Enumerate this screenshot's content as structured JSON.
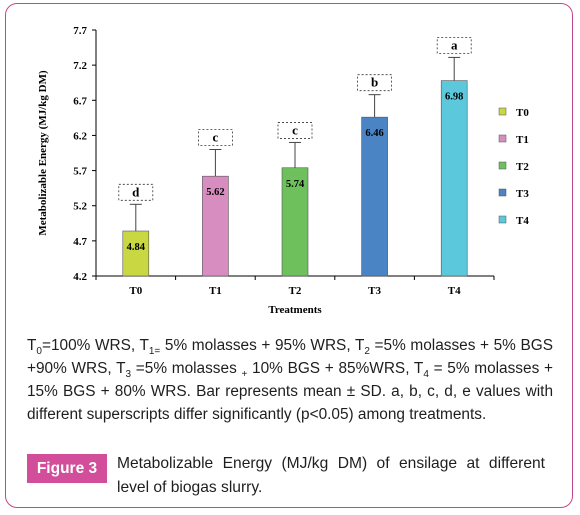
{
  "chart_data": {
    "type": "bar",
    "categories": [
      "T0",
      "T1",
      "T2",
      "T3",
      "T4"
    ],
    "values": [
      4.84,
      5.62,
      5.74,
      6.46,
      6.98
    ],
    "errors": [
      0.38,
      0.38,
      0.36,
      0.32,
      0.33
    ],
    "letters": [
      "d",
      "c",
      "c",
      "b",
      "a"
    ],
    "colors": [
      "#c8d742",
      "#d88dc0",
      "#6ec05c",
      "#4a84c4",
      "#5bc8dc"
    ],
    "ylabel": "Metabolizable Energy (MJ/kg DM)",
    "xlabel": "Treatments",
    "ylim": [
      4.2,
      7.7
    ],
    "yticks": [
      "4.2",
      "4.7",
      "5.2",
      "5.7",
      "6.2",
      "6.7",
      "7.2",
      "7.7"
    ],
    "legend": [
      "T0",
      "T1",
      "T2",
      "T3",
      "T4"
    ],
    "legend_position": "right",
    "grid": false
  },
  "caption": {
    "figure_label": "Figure 3",
    "title": "Metabolizable Energy (MJ/kg DM) of ensilage at different level of biogas slurry."
  }
}
